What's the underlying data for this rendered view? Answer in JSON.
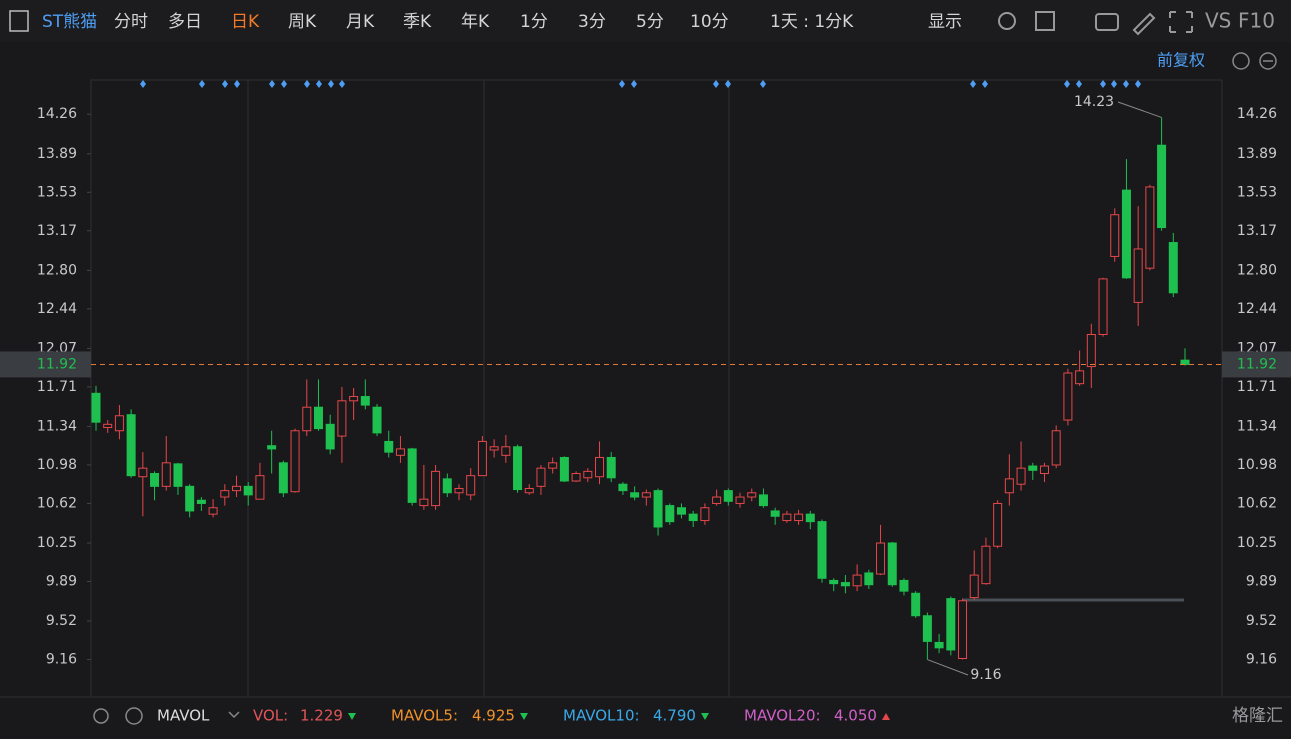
{
  "ui": {
    "stock": "ST熊猫",
    "tabs": [
      "分时",
      "多日",
      "日K",
      "周K",
      "月K",
      "季K",
      "年K",
      "1分",
      "3分",
      "5分",
      "10分"
    ],
    "period": "1天 : 1分K",
    "display": "显示",
    "vs": "VS",
    "f10": "F10",
    "adjust": "前复权",
    "indicator": "MAVOL",
    "indicator_values": [
      {
        "name": "VOL:",
        "value": "1.229"
      },
      {
        "name": "MAVOL5:",
        "value": "4.925"
      },
      {
        "name": "MAVOL10:",
        "value": "4.790"
      },
      {
        "name": "MAVOL20:",
        "value": "4.050"
      }
    ],
    "logo": "格隆汇"
  },
  "chart_data": {
    "type": "candlestick",
    "up_color": "#e5474a",
    "down_color": "#1ec04f",
    "ylim": [
      8.81,
      14.58
    ],
    "yticks": [
      14.26,
      13.89,
      13.53,
      13.17,
      {
        "value": 12.8,
        "label": "12.80"
      },
      12.44,
      12.07,
      11.71,
      11.34,
      10.98,
      10.62,
      10.25,
      9.89,
      9.52,
      9.16
    ],
    "last_price": 11.92,
    "high_annotation": 14.23,
    "low_annotation": 9.16,
    "open": [
      11.65,
      11.33,
      11.3,
      11.45,
      10.87,
      10.9,
      10.78,
      10.99,
      10.78,
      10.65,
      10.52,
      10.68,
      10.74,
      10.78,
      10.66,
      11.16,
      11.0,
      10.73,
      11.3,
      11.52,
      11.36,
      11.25,
      11.58,
      11.62,
      11.52,
      11.2,
      11.07,
      11.13,
      10.6,
      10.6,
      10.85,
      10.72,
      10.7,
      10.88,
      11.12,
      11.07,
      11.15,
      10.72,
      10.78,
      10.95,
      11.05,
      10.83,
      10.86,
      10.87,
      11.05,
      10.8,
      10.72,
      10.68,
      10.74,
      10.6,
      10.58,
      10.52,
      10.46,
      10.62,
      10.74,
      10.62,
      10.68,
      10.7,
      10.55,
      10.46,
      10.46,
      10.52,
      10.45,
      9.9,
      9.88,
      9.85,
      9.97,
      9.96,
      10.25,
      9.9,
      9.78,
      9.57,
      9.32,
      9.73,
      9.17,
      9.74,
      9.87,
      10.22,
      10.72,
      10.8,
      10.97,
      10.9,
      10.98,
      11.4,
      11.74,
      11.9,
      12.2,
      12.93,
      13.55,
      12.5,
      12.82,
      13.97,
      13.06,
      11.96
    ],
    "high": [
      11.72,
      11.4,
      11.54,
      11.5,
      11.1,
      10.92,
      11.25,
      11.0,
      10.8,
      10.68,
      10.66,
      10.8,
      10.88,
      10.82,
      11.0,
      11.3,
      11.02,
      11.32,
      11.78,
      11.78,
      11.45,
      11.71,
      11.7,
      11.78,
      11.55,
      11.3,
      11.25,
      11.14,
      10.98,
      10.98,
      10.9,
      10.8,
      10.95,
      11.25,
      11.22,
      11.26,
      11.17,
      10.8,
      10.98,
      11.05,
      11.06,
      10.92,
      10.95,
      11.2,
      11.1,
      10.82,
      10.78,
      10.75,
      10.76,
      10.62,
      10.62,
      10.55,
      10.62,
      10.75,
      10.76,
      10.72,
      10.76,
      10.76,
      10.58,
      10.55,
      10.56,
      10.55,
      10.47,
      9.92,
      9.95,
      10.05,
      10.0,
      10.42,
      10.26,
      9.92,
      9.8,
      9.6,
      9.4,
      9.75,
      9.73,
      10.18,
      10.3,
      10.65,
      11.08,
      11.2,
      11.0,
      11.0,
      11.35,
      11.88,
      12.05,
      12.3,
      12.73,
      13.38,
      13.84,
      13.4,
      13.6,
      14.23,
      13.15,
      12.07
    ],
    "low": [
      11.3,
      11.28,
      11.22,
      10.86,
      10.5,
      10.65,
      10.74,
      10.7,
      10.49,
      10.55,
      10.49,
      10.6,
      10.68,
      10.6,
      10.66,
      10.9,
      10.68,
      10.72,
      11.25,
      11.3,
      11.08,
      11.0,
      11.4,
      11.5,
      11.25,
      11.05,
      11.0,
      10.6,
      10.56,
      10.56,
      10.68,
      10.65,
      10.65,
      10.88,
      11.05,
      11.0,
      10.72,
      10.7,
      10.7,
      10.9,
      10.82,
      10.82,
      10.82,
      10.8,
      10.82,
      10.7,
      10.65,
      10.6,
      10.32,
      10.42,
      10.48,
      10.4,
      10.42,
      10.6,
      10.6,
      10.58,
      10.64,
      10.58,
      10.42,
      10.44,
      10.42,
      10.38,
      9.88,
      9.8,
      9.78,
      9.8,
      9.82,
      9.95,
      9.84,
      9.76,
      9.55,
      9.16,
      9.22,
      9.2,
      9.16,
      9.72,
      9.86,
      10.2,
      10.6,
      10.74,
      10.84,
      10.82,
      10.95,
      11.35,
      11.72,
      11.7,
      12.18,
      12.88,
      12.72,
      12.28,
      12.8,
      13.17,
      12.55,
      11.91
    ],
    "close": [
      11.38,
      11.36,
      11.44,
      10.88,
      10.95,
      10.78,
      11.0,
      10.78,
      10.55,
      10.62,
      10.58,
      10.74,
      10.78,
      10.7,
      10.88,
      11.13,
      10.72,
      11.3,
      11.52,
      11.32,
      11.13,
      11.58,
      11.62,
      11.54,
      11.28,
      11.1,
      11.13,
      10.63,
      10.66,
      10.92,
      10.72,
      10.76,
      10.88,
      11.2,
      11.15,
      11.15,
      10.75,
      10.76,
      10.95,
      11.0,
      10.83,
      10.9,
      10.92,
      11.05,
      10.86,
      10.74,
      10.68,
      10.72,
      10.4,
      10.45,
      10.52,
      10.46,
      10.58,
      10.68,
      10.64,
      10.68,
      10.72,
      10.6,
      10.5,
      10.52,
      10.52,
      10.45,
      9.92,
      9.87,
      9.85,
      9.95,
      9.86,
      10.25,
      9.86,
      9.8,
      9.57,
      9.33,
      9.27,
      9.25,
      9.71,
      9.95,
      10.22,
      10.62,
      10.85,
      10.95,
      10.93,
      10.97,
      11.3,
      11.84,
      11.86,
      12.2,
      12.72,
      13.32,
      12.73,
      13.0,
      13.58,
      13.2,
      12.59,
      11.92
    ]
  }
}
